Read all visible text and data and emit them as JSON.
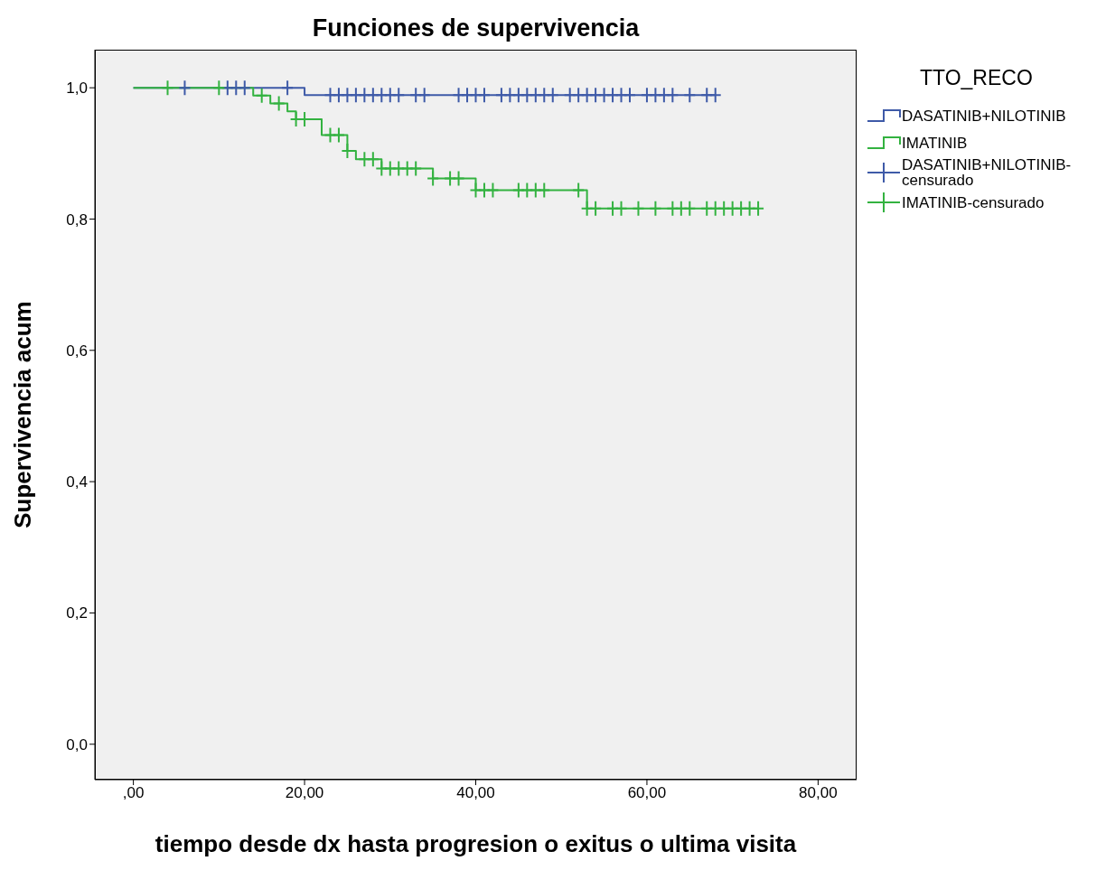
{
  "chart_data": {
    "type": "step",
    "title": "Funciones de supervivencia",
    "xlabel": "tiempo desde dx hasta progresion o exitus o ultima visita",
    "ylabel": "Supervivencia acum",
    "legend_title": "TTO_RECO",
    "legend": "right",
    "xlim": [
      -4.5,
      84.5
    ],
    "xticks": [
      {
        "value": 0,
        "label": ",00"
      },
      {
        "value": 20,
        "label": "20,00"
      },
      {
        "value": 40,
        "label": "40,00"
      },
      {
        "value": 60,
        "label": "60,00"
      },
      {
        "value": 80,
        "label": "80,00"
      }
    ],
    "ylim": [
      -0.054,
      1.058
    ],
    "yticks": [
      {
        "value": 0,
        "label": "0,0"
      },
      {
        "value": 0.2,
        "label": "0,2"
      },
      {
        "value": 0.4,
        "label": "0,4"
      },
      {
        "value": 0.6,
        "label": "0,6"
      },
      {
        "value": 0.8,
        "label": "0,8"
      },
      {
        "value": 1,
        "label": "1,0"
      }
    ],
    "grid": false,
    "series": [
      {
        "name": "DASATINIB+NILOTINIB",
        "color": "#3e5aa8",
        "x": [
          0,
          20,
          68
        ],
        "values": [
          1,
          0.989,
          0.989
        ]
      },
      {
        "name": "IMATINIB",
        "color": "#33b240",
        "x": [
          0,
          14,
          16,
          18,
          19,
          22,
          25,
          26,
          29,
          35,
          40,
          53,
          73
        ],
        "values": [
          1,
          0.988,
          0.976,
          0.964,
          0.952,
          0.928,
          0.904,
          0.891,
          0.877,
          0.862,
          0.844,
          0.816,
          0.816
        ]
      },
      {
        "name": "DASATINIB+NILOTINIB-censurado",
        "type": "scatter",
        "marker": "cross",
        "color": "#3e5aa8",
        "x": [
          6,
          11,
          12,
          13,
          18,
          23,
          24,
          25,
          26,
          27,
          28,
          29,
          30,
          31,
          33,
          34,
          38,
          39,
          40,
          41,
          43,
          44,
          45,
          46,
          47,
          48,
          49,
          51,
          52,
          53,
          54,
          55,
          56,
          57,
          58,
          60,
          61,
          62,
          63,
          65,
          67,
          68
        ],
        "values": [
          1,
          1,
          1,
          1,
          1,
          0.989,
          0.989,
          0.989,
          0.989,
          0.989,
          0.989,
          0.989,
          0.989,
          0.989,
          0.989,
          0.989,
          0.989,
          0.989,
          0.989,
          0.989,
          0.989,
          0.989,
          0.989,
          0.989,
          0.989,
          0.989,
          0.989,
          0.989,
          0.989,
          0.989,
          0.989,
          0.989,
          0.989,
          0.989,
          0.989,
          0.989,
          0.989,
          0.989,
          0.989,
          0.989,
          0.989,
          0.989
        ]
      },
      {
        "name": "IMATINIB-censurado",
        "type": "scatter",
        "marker": "cross",
        "color": "#33b240",
        "x": [
          4,
          10,
          15,
          17,
          19,
          20,
          23,
          24,
          25,
          27,
          28,
          29,
          30,
          31,
          32,
          33,
          35,
          37,
          38,
          40,
          41,
          42,
          45,
          46,
          47,
          48,
          52,
          53,
          54,
          56,
          57,
          59,
          61,
          63,
          64,
          65,
          67,
          68,
          69,
          70,
          71,
          72,
          73
        ],
        "values": [
          1,
          1,
          0.988,
          0.976,
          0.952,
          0.952,
          0.928,
          0.928,
          0.904,
          0.891,
          0.891,
          0.877,
          0.877,
          0.877,
          0.877,
          0.877,
          0.862,
          0.862,
          0.862,
          0.844,
          0.844,
          0.844,
          0.844,
          0.844,
          0.844,
          0.844,
          0.844,
          0.816,
          0.816,
          0.816,
          0.816,
          0.816,
          0.816,
          0.816,
          0.816,
          0.816,
          0.816,
          0.816,
          0.816,
          0.816,
          0.816,
          0.816,
          0.816
        ]
      }
    ]
  }
}
